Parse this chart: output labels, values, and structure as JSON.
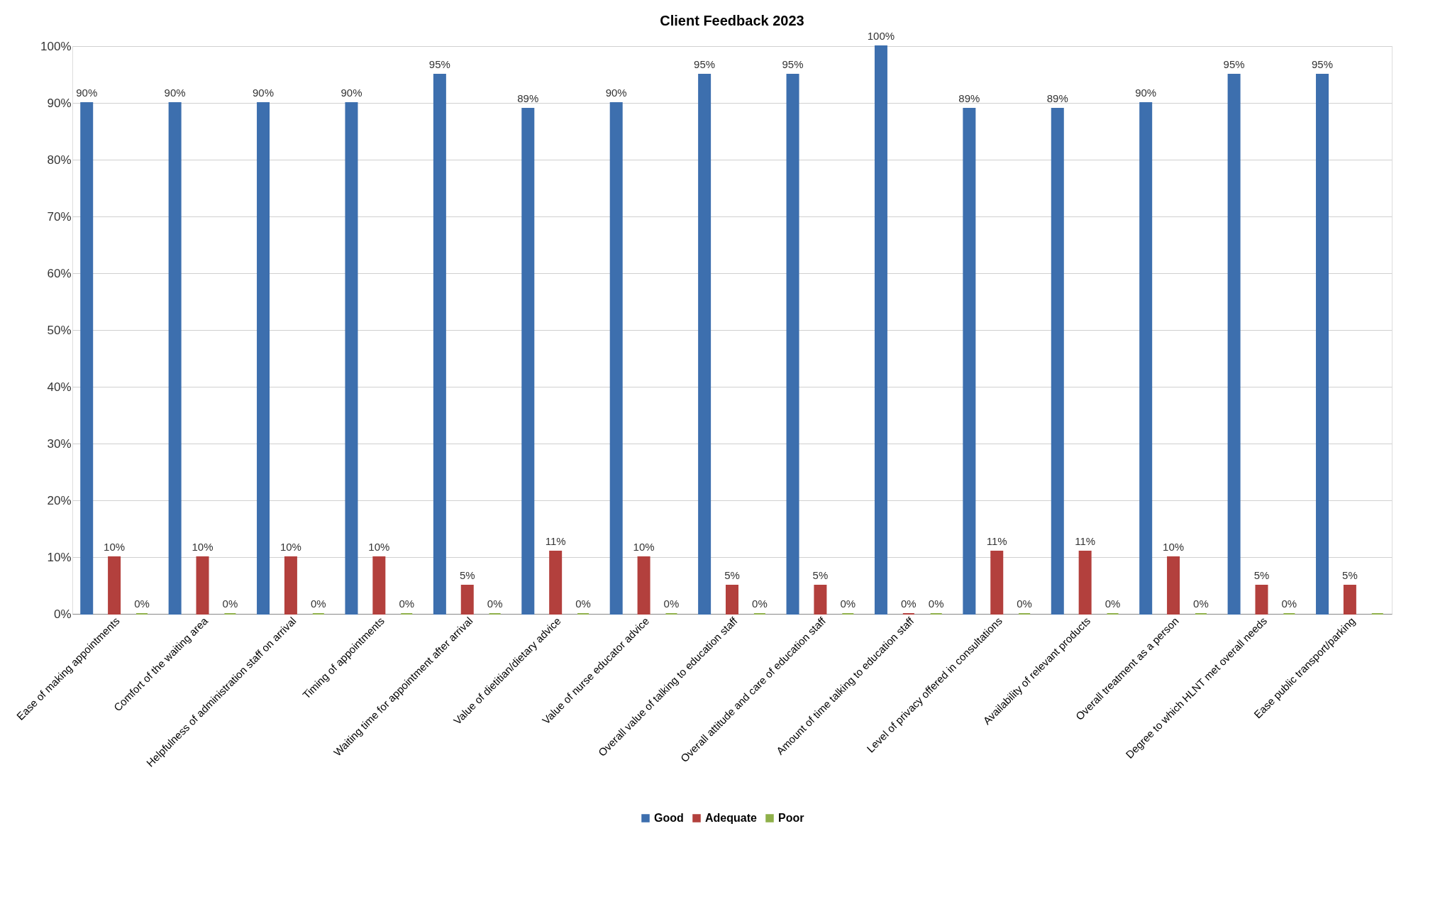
{
  "chart_data": {
    "type": "bar",
    "title": "Client Feedback 2023",
    "categories": [
      "Ease of making appointments",
      "Comfort of the waiting area",
      "Helpfulness of administration staff on arrival",
      "Timing of appointments",
      "Waiting time for appointment after arrival",
      "Value of dietitian/dietary advice",
      "Value of nurse educator advice",
      "Overall value of talking to education staff",
      "Overall attitude and care of education staff",
      "Amount of time talking to education staff",
      "Level of privacy offered in consultations",
      "Availability of relevant products",
      "Overall treatment as a person",
      "Degree to which HLNT met overall needs",
      "Ease public transport/parking"
    ],
    "series": [
      {
        "name": "Good",
        "color": "#3d6fae",
        "values": [
          90,
          90,
          90,
          90,
          95,
          89,
          90,
          95,
          95,
          100,
          89,
          89,
          90,
          95,
          95
        ],
        "value_labels": [
          "90%",
          "90%",
          "90%",
          "90%",
          "95%",
          "89%",
          "90%",
          "95%",
          "95%",
          "100%",
          "89%",
          "89%",
          "90%",
          "95%",
          "95%"
        ]
      },
      {
        "name": "Adequate",
        "color": "#b3403d",
        "values": [
          10,
          10,
          10,
          10,
          5,
          11,
          10,
          5,
          5,
          0,
          11,
          11,
          10,
          5,
          5
        ],
        "value_labels": [
          "10%",
          "10%",
          "10%",
          "10%",
          "5%",
          "11%",
          "10%",
          "5%",
          "5%",
          "0%",
          "11%",
          "11%",
          "10%",
          "5%",
          "5%"
        ]
      },
      {
        "name": "Poor",
        "color": "#8fb04a",
        "values": [
          0,
          0,
          0,
          0,
          0,
          0,
          0,
          0,
          0,
          0,
          0,
          0,
          0,
          0,
          0
        ],
        "value_labels": [
          "0%",
          "0%",
          "0%",
          "0%",
          "0%",
          "0%",
          "0%",
          "0%",
          "0%",
          "0%",
          "0%",
          "0%",
          "0%",
          "0%",
          null
        ]
      }
    ],
    "ylim": [
      0,
      100
    ],
    "yticks": [
      {
        "value": 0,
        "label": "0%"
      },
      {
        "value": 10,
        "label": "10%"
      },
      {
        "value": 20,
        "label": "20%"
      },
      {
        "value": 30,
        "label": "30%"
      },
      {
        "value": 40,
        "label": "40%"
      },
      {
        "value": 50,
        "label": "50%"
      },
      {
        "value": 60,
        "label": "60%"
      },
      {
        "value": 70,
        "label": "70%"
      },
      {
        "value": 80,
        "label": "80%"
      },
      {
        "value": 90,
        "label": "90%"
      },
      {
        "value": 100,
        "label": "100%"
      }
    ],
    "grid": "y",
    "legend": "bottom"
  }
}
